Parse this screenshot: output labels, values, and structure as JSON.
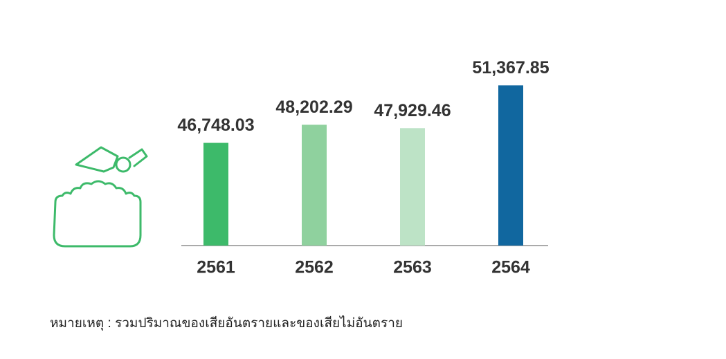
{
  "chart_data": {
    "type": "bar",
    "categories": [
      "2561",
      "2562",
      "2563",
      "2564"
    ],
    "values": [
      46748.03,
      48202.29,
      47929.46,
      51367.85
    ],
    "value_labels": [
      "46,748.03",
      "48,202.29",
      "47,929.46",
      "51,367.85"
    ],
    "colors": [
      "#3dba6a",
      "#8fd19e",
      "#bde3c6",
      "#11679f"
    ],
    "ylim": [
      38500,
      52000
    ],
    "note": "หมายเหตุ : รวมปริมาณของเสียอันตรายและของเสียไม่อันตราย"
  }
}
